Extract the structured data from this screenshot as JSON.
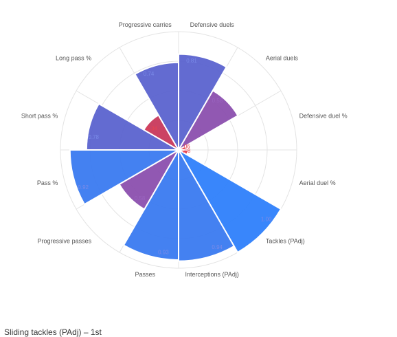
{
  "chart_data": {
    "type": "polar-area",
    "scale": [
      0,
      1
    ],
    "grid": true,
    "categories": [
      {
        "label": "Defensive duels",
        "value": 0.81,
        "value_label": "0.81",
        "color": "#5b63cf"
      },
      {
        "label": "Aerial duels",
        "value": 0.58,
        "value_label": "0.58",
        "color": "#8b4fae"
      },
      {
        "label": "Defensive duel %",
        "value": 0.06,
        "value_label": ".06",
        "color": "#e8434f"
      },
      {
        "label": "Aerial duel %",
        "value": 0.08,
        "value_label": ".08",
        "color": "#e8434f"
      },
      {
        "label": "Tackles (PAdj)",
        "value": 1.0,
        "value_label": "1.00",
        "color": "#2e7ffb"
      },
      {
        "label": "Interceptions (PAdj)",
        "value": 0.94,
        "value_label": "0.94",
        "color": "#3a7af0"
      },
      {
        "label": "Passes",
        "value": 0.93,
        "value_label": "0.93",
        "color": "#3a7af0"
      },
      {
        "label": "Progressive passes",
        "value": 0.58,
        "value_label": "0.58",
        "color": "#8b4fae"
      },
      {
        "label": "Pass %",
        "value": 0.92,
        "value_label": "0.92",
        "color": "#3a7af0"
      },
      {
        "label": "Short pass %",
        "value": 0.78,
        "value_label": "0.78",
        "color": "#5b63cf"
      },
      {
        "label": "Long pass %",
        "value": 0.34,
        "value_label": "0.34",
        "color": "#c8395c"
      },
      {
        "label": "Progressive carries",
        "value": 0.74,
        "value_label": "0.74",
        "color": "#5b63cf"
      }
    ]
  },
  "caption": "Sliding tackles (PAdj) – 1st"
}
